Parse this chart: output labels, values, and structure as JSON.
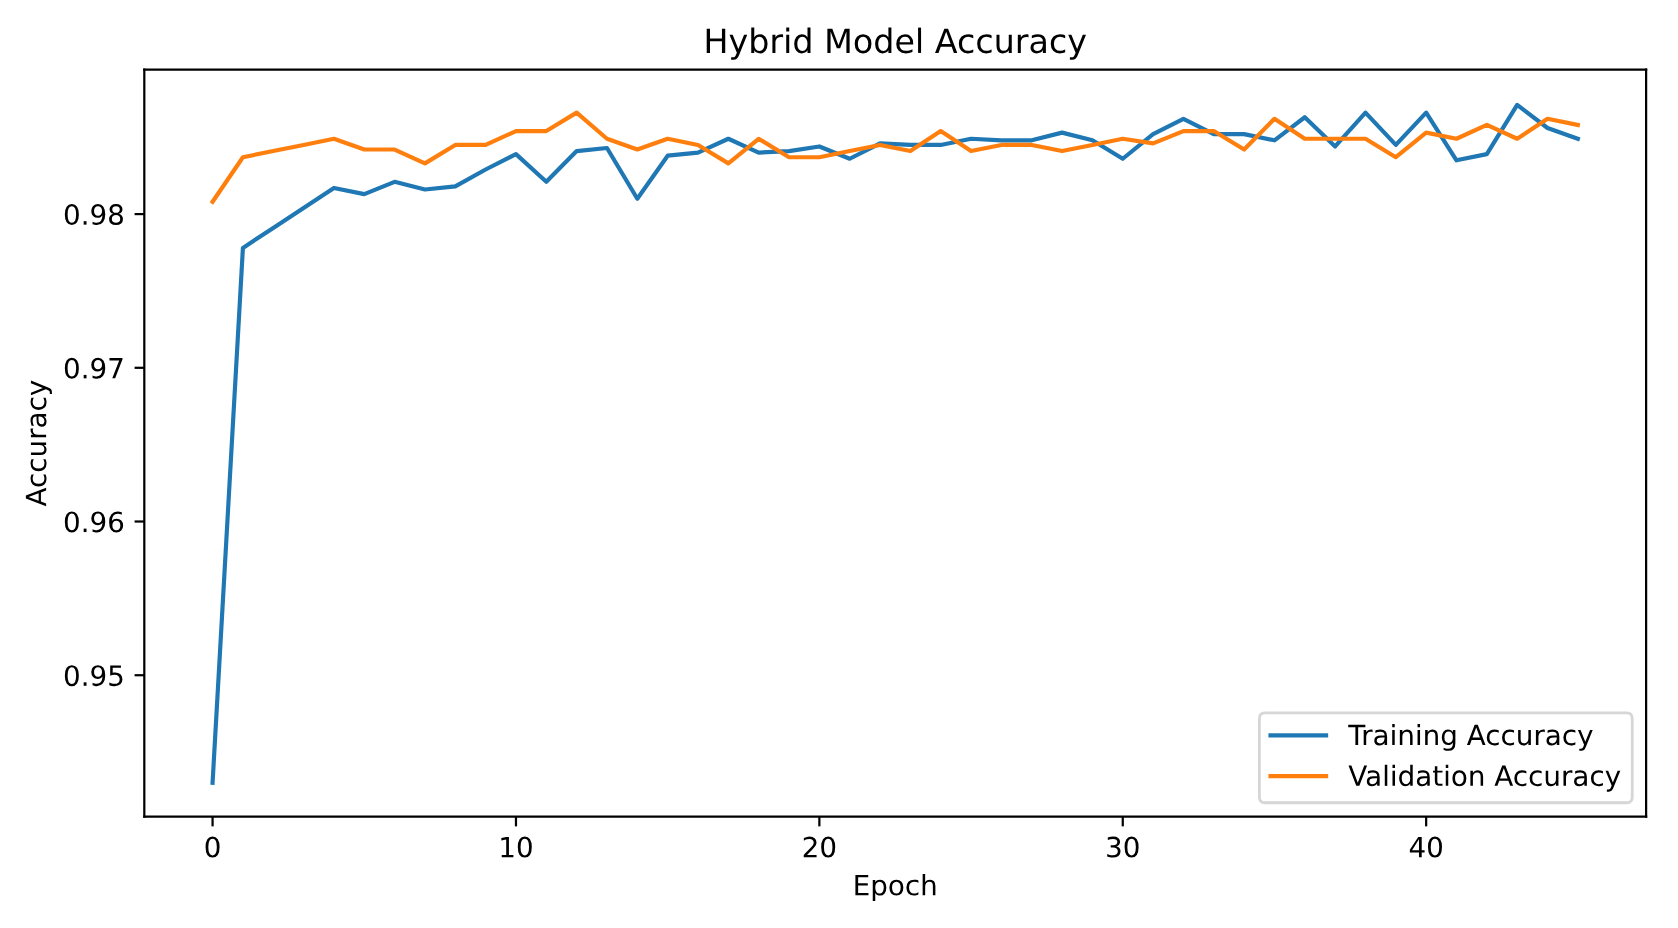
{
  "chart_data": {
    "type": "line",
    "title": "Hybrid Model Accuracy",
    "xlabel": "Epoch",
    "ylabel": "Accuracy",
    "x": [
      0,
      1,
      2,
      3,
      4,
      5,
      6,
      7,
      8,
      9,
      10,
      11,
      12,
      13,
      14,
      15,
      16,
      17,
      18,
      19,
      20,
      21,
      22,
      23,
      24,
      25,
      26,
      27,
      28,
      29,
      30,
      31,
      32,
      33,
      34,
      35,
      36,
      37,
      38,
      39,
      40,
      41,
      42,
      43,
      44,
      45
    ],
    "series": [
      {
        "name": "Training Accuracy",
        "color": "#1f77b4",
        "values": [
          0.943,
          0.9778,
          0.9791,
          0.9804,
          0.9817,
          0.9813,
          0.9821,
          0.9816,
          0.9818,
          0.9829,
          0.9839,
          0.9821,
          0.9841,
          0.9843,
          0.981,
          0.9838,
          0.984,
          0.9849,
          0.984,
          0.9841,
          0.9844,
          0.9836,
          0.9846,
          0.9845,
          0.9845,
          0.9849,
          0.9848,
          0.9848,
          0.9853,
          0.9848,
          0.9836,
          0.9852,
          0.9862,
          0.9852,
          0.9852,
          0.9848,
          0.9863,
          0.9844,
          0.9866,
          0.9845,
          0.9866,
          0.9835,
          0.9839,
          0.9871,
          0.9856,
          0.9849
        ]
      },
      {
        "name": "Validation Accuracy",
        "color": "#ff7f0e",
        "values": [
          0.9808,
          0.9837,
          0.9841,
          0.9845,
          0.9849,
          0.9842,
          0.9842,
          0.9833,
          0.9845,
          0.9845,
          0.9854,
          0.9854,
          0.9866,
          0.9849,
          0.9842,
          0.9849,
          0.9845,
          0.9833,
          0.9849,
          0.9837,
          0.9837,
          0.9841,
          0.9845,
          0.9841,
          0.9854,
          0.9841,
          0.9845,
          0.9845,
          0.9841,
          0.9845,
          0.9849,
          0.9846,
          0.9854,
          0.9854,
          0.9842,
          0.9862,
          0.9849,
          0.9849,
          0.9849,
          0.9837,
          0.9853,
          0.9849,
          0.9858,
          0.9849,
          0.9862,
          0.9858
        ]
      }
    ],
    "xlim": [
      -2.25,
      47.25
    ],
    "ylim": [
      0.9408,
      0.9894
    ],
    "xticks": [
      0,
      10,
      20,
      30,
      40
    ],
    "yticks": [
      {
        "value": 0.95,
        "label": "0.95"
      },
      {
        "value": 0.96,
        "label": "0.96"
      },
      {
        "value": 0.97,
        "label": "0.97"
      },
      {
        "value": 0.98,
        "label": "0.98"
      }
    ],
    "legend": "lower right",
    "grid": false,
    "marker": "none",
    "line_style": "solid"
  }
}
